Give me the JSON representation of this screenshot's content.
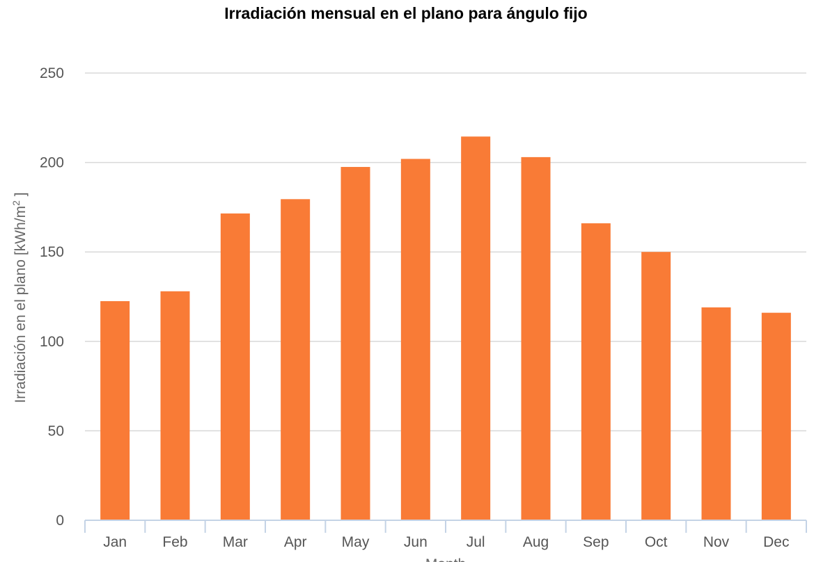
{
  "chart_data": {
    "type": "bar",
    "title": "Irradiación mensual en el plano para ángulo fijo",
    "ylabel_main": "Irradiación en el plano [kWh/m",
    "ylabel_sup": "2",
    "ylabel_end": " ]",
    "xlabel": "Month",
    "categories": [
      "Jan",
      "Feb",
      "Mar",
      "Apr",
      "May",
      "Jun",
      "Jul",
      "Aug",
      "Sep",
      "Oct",
      "Nov",
      "Dec"
    ],
    "values": [
      122.5,
      128,
      171.5,
      179.5,
      197.5,
      202,
      214.5,
      203,
      166,
      150,
      119,
      116
    ],
    "ylim": [
      0,
      250
    ],
    "yticks": [
      0,
      50,
      100,
      150,
      200,
      250
    ],
    "grid": true,
    "bar_color": "#f97b36",
    "grid_color": "#d8d8d8",
    "axis_color": "#c4d3e6"
  }
}
